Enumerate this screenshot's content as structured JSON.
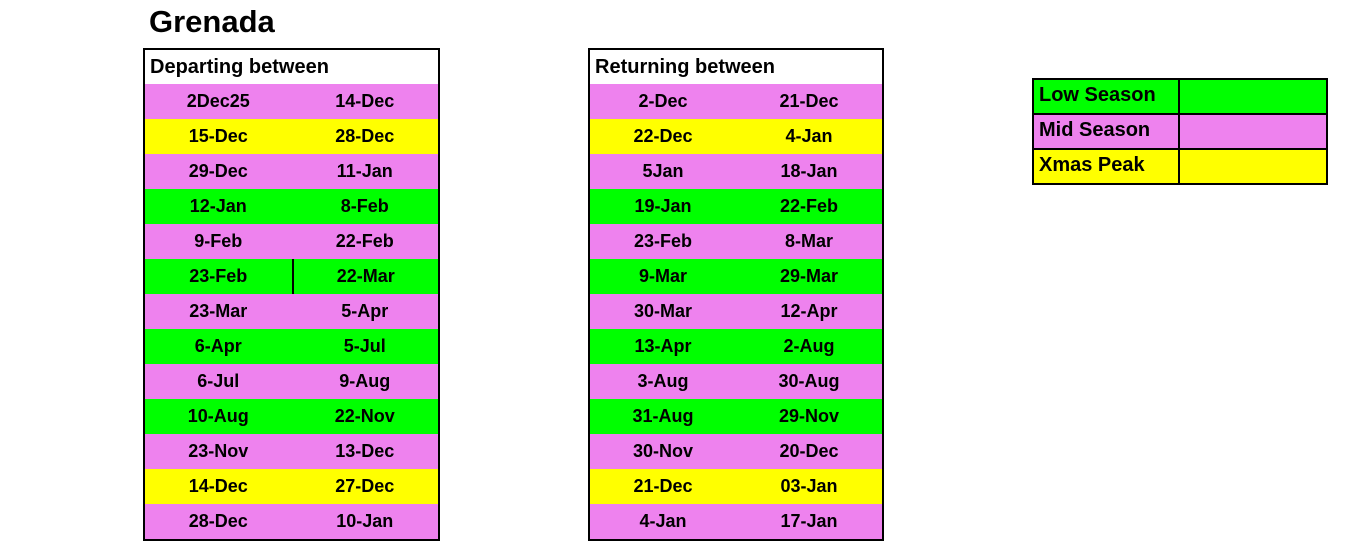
{
  "title": "Grenada",
  "colors": {
    "low_season": "#00FF00",
    "mid_season": "#EE82EE",
    "xmas_peak": "#FFFF00",
    "border": "#000000",
    "text": "#000000"
  },
  "departing": {
    "header": "Departing between",
    "rows": [
      {
        "from": "2Dec25",
        "to": "14-Dec",
        "season": "mid"
      },
      {
        "from": "15-Dec",
        "to": "28-Dec",
        "season": "xmas"
      },
      {
        "from": "29-Dec",
        "to": "11-Jan",
        "season": "mid"
      },
      {
        "from": "12-Jan",
        "to": "8-Feb",
        "season": "low"
      },
      {
        "from": "9-Feb",
        "to": "22-Feb",
        "season": "mid"
      },
      {
        "from": "23-Feb",
        "to": "22-Mar",
        "season": "low",
        "divider": true
      },
      {
        "from": "23-Mar",
        "to": "5-Apr",
        "season": "mid"
      },
      {
        "from": "6-Apr",
        "to": "5-Jul",
        "season": "low"
      },
      {
        "from": "6-Jul",
        "to": "9-Aug",
        "season": "mid"
      },
      {
        "from": "10-Aug",
        "to": "22-Nov",
        "season": "low"
      },
      {
        "from": "23-Nov",
        "to": "13-Dec",
        "season": "mid"
      },
      {
        "from": "14-Dec",
        "to": "27-Dec",
        "season": "xmas"
      },
      {
        "from": "28-Dec",
        "to": "10-Jan",
        "season": "mid"
      }
    ]
  },
  "returning": {
    "header": "Returning between",
    "rows": [
      {
        "from": "2-Dec",
        "to": "21-Dec",
        "season": "mid"
      },
      {
        "from": "22-Dec",
        "to": "4-Jan",
        "season": "xmas"
      },
      {
        "from": "5Jan",
        "to": "18-Jan",
        "season": "mid"
      },
      {
        "from": "19-Jan",
        "to": "22-Feb",
        "season": "low"
      },
      {
        "from": "23-Feb",
        "to": "8-Mar",
        "season": "mid"
      },
      {
        "from": "9-Mar",
        "to": "29-Mar",
        "season": "low"
      },
      {
        "from": "30-Mar",
        "to": "12-Apr",
        "season": "mid"
      },
      {
        "from": "13-Apr",
        "to": "2-Aug",
        "season": "low"
      },
      {
        "from": "3-Aug",
        "to": "30-Aug",
        "season": "mid"
      },
      {
        "from": "31-Aug",
        "to": "29-Nov",
        "season": "low"
      },
      {
        "from": "30-Nov",
        "to": "20-Dec",
        "season": "mid"
      },
      {
        "from": "21-Dec",
        "to": "03-Jan",
        "season": "xmas"
      },
      {
        "from": "4-Jan",
        "to": "17-Jan",
        "season": "mid"
      }
    ]
  },
  "legend": {
    "items": [
      {
        "label": "Low Season",
        "season": "low"
      },
      {
        "label": "Mid Season",
        "season": "mid"
      },
      {
        "label": "Xmas Peak",
        "season": "xmas"
      }
    ]
  }
}
